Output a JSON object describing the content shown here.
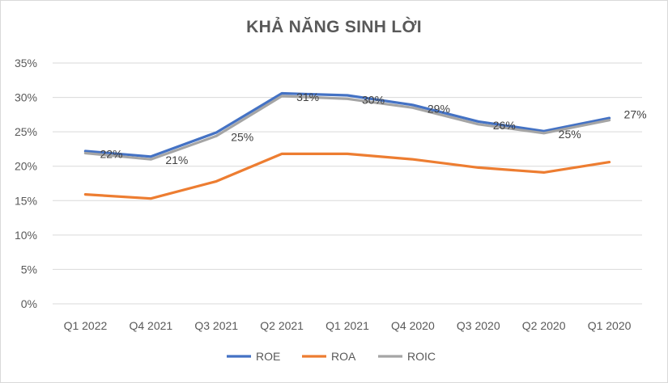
{
  "chart_data": {
    "type": "line",
    "title": "KHẢ NĂNG SINH LỜI",
    "categories": [
      "Q1 2022",
      "Q4 2021",
      "Q3 2021",
      "Q2 2021",
      "Q1 2021",
      "Q4 2020",
      "Q3 2020",
      "Q2 2020",
      "Q1 2020"
    ],
    "yticks": [
      "0%",
      "5%",
      "10%",
      "15%",
      "20%",
      "25%",
      "30%",
      "35%"
    ],
    "ylim": [
      0,
      35
    ],
    "grid": true,
    "legend_position": "bottom",
    "series": [
      {
        "name": "ROE",
        "color": "#4472C4",
        "values": [
          22.2,
          21.4,
          24.9,
          30.6,
          30.3,
          28.9,
          26.5,
          25.1,
          27.0
        ]
      },
      {
        "name": "ROA",
        "color": "#ED7D31",
        "values": [
          15.9,
          15.3,
          17.8,
          21.8,
          21.8,
          21.0,
          19.8,
          19.1,
          20.6
        ]
      },
      {
        "name": "ROIC",
        "color": "#A5A5A5",
        "values": [
          21.9,
          21.0,
          24.4,
          30.2,
          29.8,
          28.5,
          26.1,
          24.8,
          26.7
        ]
      }
    ],
    "data_labels": [
      "22%",
      "21%",
      "25%",
      "31%",
      "30%",
      "29%",
      "26%",
      "25%",
      "27%"
    ]
  }
}
